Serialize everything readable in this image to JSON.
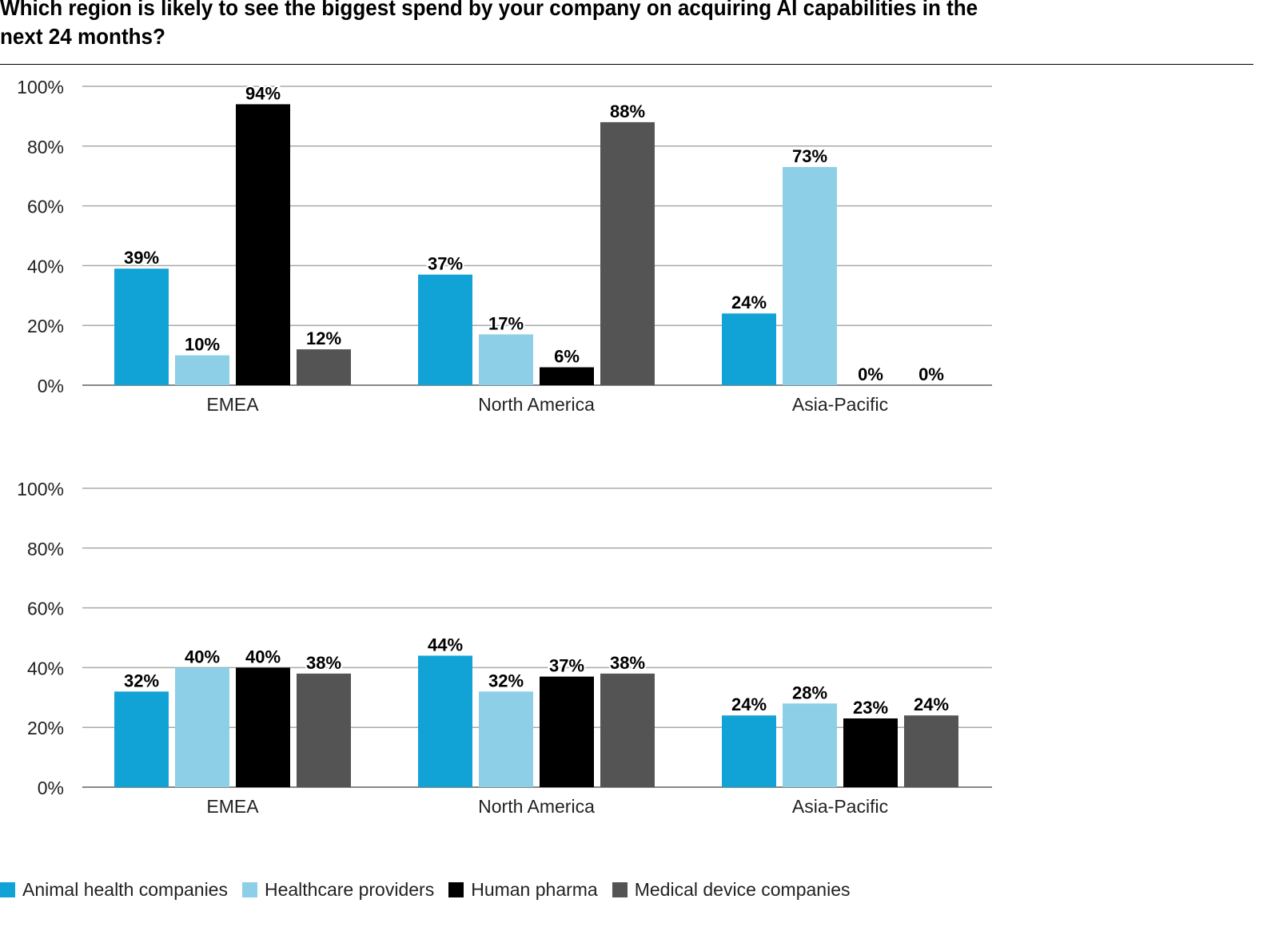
{
  "title_line1": "Which region is likely to see the biggest spend by your company on acquiring AI capabilities in the",
  "title_line2": "next 24 months?",
  "chart_data": [
    {
      "type": "bar",
      "categories": [
        "EMEA",
        "North America",
        "Asia-Pacific"
      ],
      "ylim": [
        0,
        100
      ],
      "yticks": [
        "0%",
        "20%",
        "40%",
        "60%",
        "80%",
        "100%"
      ],
      "grid": true,
      "series": [
        {
          "name": "Animal health companies",
          "values": [
            39,
            37,
            24
          ]
        },
        {
          "name": "Healthcare providers",
          "values": [
            10,
            17,
            73
          ]
        },
        {
          "name": "Human pharma",
          "values": [
            94,
            6,
            0
          ]
        },
        {
          "name": "Medical device companies",
          "values": [
            12,
            88,
            0
          ]
        }
      ]
    },
    {
      "type": "bar",
      "categories": [
        "EMEA",
        "North America",
        "Asia-Pacific"
      ],
      "ylim": [
        0,
        100
      ],
      "yticks": [
        "0%",
        "20%",
        "40%",
        "60%",
        "80%",
        "100%"
      ],
      "grid": true,
      "series": [
        {
          "name": "Animal health companies",
          "values": [
            32,
            44,
            24
          ]
        },
        {
          "name": "Healthcare providers",
          "values": [
            40,
            32,
            28
          ]
        },
        {
          "name": "Human pharma",
          "values": [
            40,
            37,
            23
          ]
        },
        {
          "name": "Medical device companies",
          "values": [
            38,
            38,
            24
          ]
        }
      ]
    }
  ],
  "legend": {
    "placement": "bottom-left",
    "items": [
      {
        "label": "Animal health companies",
        "color": "#12a3d6"
      },
      {
        "label": "Healthcare providers",
        "color": "#8ecfe8"
      },
      {
        "label": "Human pharma",
        "color": "#000000"
      },
      {
        "label": "Medical device companies",
        "color": "#545454"
      }
    ]
  }
}
